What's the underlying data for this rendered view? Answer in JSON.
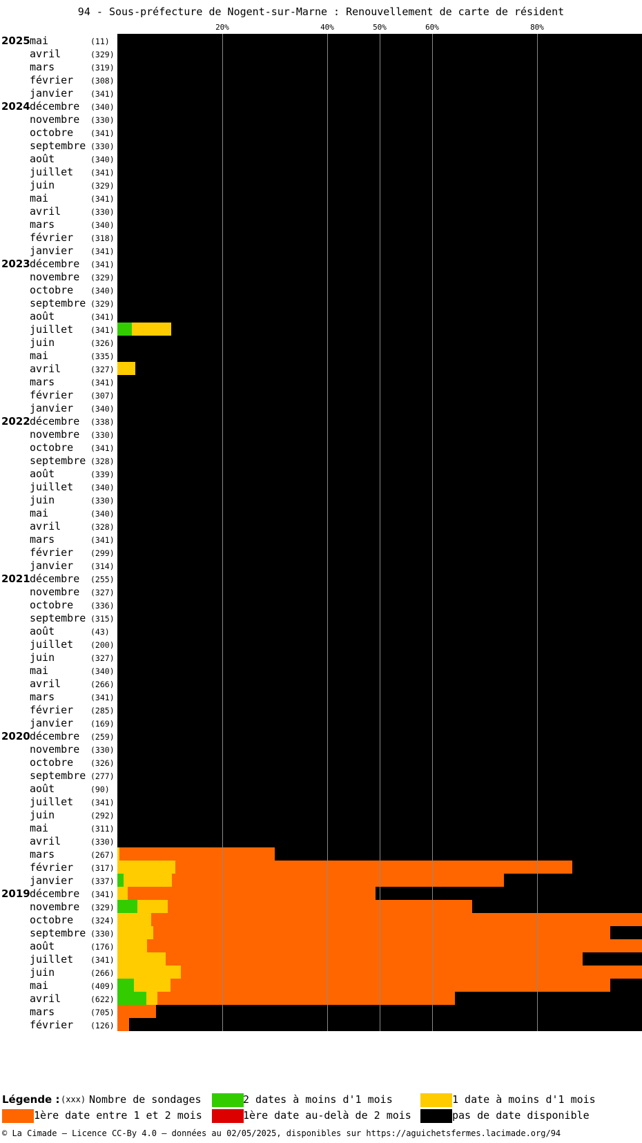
{
  "title": "94 - Sous-préfecture de Nogent-sur-Marne : Renouvellement de carte de résident",
  "colors": {
    "two_dates_lt_1m": "#33cc00",
    "one_date_lt_1m": "#ffcc00",
    "first_date_1_2m": "#ff6600",
    "first_date_gt_2m": "#dd0000",
    "none": "#000000"
  },
  "chart_data": {
    "type": "bar",
    "orientation": "horizontal-stacked",
    "x_unit": "percent",
    "xlim": [
      0,
      100
    ],
    "x_ticks": [
      20,
      40,
      50,
      60,
      80
    ],
    "x_tick_labels": [
      "20%",
      "40%",
      "50%",
      "60%",
      "80%"
    ],
    "series_order": [
      "two_dates_lt_1m",
      "one_date_lt_1m",
      "first_date_1_2m",
      "first_date_gt_2m",
      "none"
    ],
    "rows": [
      {
        "year": "2025",
        "month": "mai",
        "count": "(11)",
        "values": [
          0,
          0,
          0,
          0,
          100
        ]
      },
      {
        "year": "",
        "month": "avril",
        "count": "(329)",
        "values": [
          0,
          0,
          0,
          0,
          100
        ]
      },
      {
        "year": "",
        "month": "mars",
        "count": "(319)",
        "values": [
          0,
          0,
          0,
          0,
          100
        ]
      },
      {
        "year": "",
        "month": "février",
        "count": "(308)",
        "values": [
          0,
          0,
          0,
          0,
          100
        ]
      },
      {
        "year": "",
        "month": "janvier",
        "count": "(341)",
        "values": [
          0,
          0,
          0,
          0,
          100
        ]
      },
      {
        "year": "2024",
        "month": "décembre",
        "count": "(340)",
        "values": [
          0,
          0,
          0,
          0,
          100
        ]
      },
      {
        "year": "",
        "month": "novembre",
        "count": "(330)",
        "values": [
          0,
          0,
          0,
          0,
          100
        ]
      },
      {
        "year": "",
        "month": "octobre",
        "count": "(341)",
        "values": [
          0,
          0,
          0,
          0,
          100
        ]
      },
      {
        "year": "",
        "month": "septembre",
        "count": "(330)",
        "values": [
          0,
          0,
          0,
          0,
          100
        ]
      },
      {
        "year": "",
        "month": "août",
        "count": "(340)",
        "values": [
          0,
          0,
          0,
          0,
          100
        ]
      },
      {
        "year": "",
        "month": "juillet",
        "count": "(341)",
        "values": [
          0,
          0,
          0,
          0,
          100
        ]
      },
      {
        "year": "",
        "month": "juin",
        "count": "(329)",
        "values": [
          0,
          0,
          0,
          0,
          100
        ]
      },
      {
        "year": "",
        "month": "mai",
        "count": "(341)",
        "values": [
          0,
          0,
          0,
          0,
          100
        ]
      },
      {
        "year": "",
        "month": "avril",
        "count": "(330)",
        "values": [
          0,
          0,
          0,
          0,
          100
        ]
      },
      {
        "year": "",
        "month": "mars",
        "count": "(340)",
        "values": [
          0,
          0,
          0,
          0,
          100
        ]
      },
      {
        "year": "",
        "month": "février",
        "count": "(318)",
        "values": [
          0,
          0,
          0,
          0,
          100
        ]
      },
      {
        "year": "",
        "month": "janvier",
        "count": "(341)",
        "values": [
          0,
          0,
          0,
          0,
          100
        ]
      },
      {
        "year": "2023",
        "month": "décembre",
        "count": "(341)",
        "values": [
          0,
          0,
          0,
          0,
          100
        ]
      },
      {
        "year": "",
        "month": "novembre",
        "count": "(329)",
        "values": [
          0,
          0,
          0,
          0,
          100
        ]
      },
      {
        "year": "",
        "month": "octobre",
        "count": "(340)",
        "values": [
          0,
          0,
          0,
          0,
          100
        ]
      },
      {
        "year": "",
        "month": "septembre",
        "count": "(329)",
        "values": [
          0,
          0,
          0,
          0,
          100
        ]
      },
      {
        "year": "",
        "month": "août",
        "count": "(341)",
        "values": [
          0,
          0,
          0,
          0,
          100
        ]
      },
      {
        "year": "",
        "month": "juillet",
        "count": "(341)",
        "values": [
          2.8,
          7.4,
          0,
          0,
          89.8
        ]
      },
      {
        "year": "",
        "month": "juin",
        "count": "(326)",
        "values": [
          0,
          0,
          0,
          0,
          100
        ]
      },
      {
        "year": "",
        "month": "mai",
        "count": "(335)",
        "values": [
          0,
          0,
          0,
          0,
          100
        ]
      },
      {
        "year": "",
        "month": "avril",
        "count": "(327)",
        "values": [
          0,
          3.4,
          0,
          0,
          96.6
        ]
      },
      {
        "year": "",
        "month": "mars",
        "count": "(341)",
        "values": [
          0,
          0,
          0,
          0,
          100
        ]
      },
      {
        "year": "",
        "month": "février",
        "count": "(307)",
        "values": [
          0,
          0,
          0,
          0,
          100
        ]
      },
      {
        "year": "",
        "month": "janvier",
        "count": "(340)",
        "values": [
          0,
          0,
          0,
          0,
          100
        ]
      },
      {
        "year": "2022",
        "month": "décembre",
        "count": "(338)",
        "values": [
          0,
          0,
          0,
          0,
          100
        ]
      },
      {
        "year": "",
        "month": "novembre",
        "count": "(330)",
        "values": [
          0,
          0,
          0,
          0,
          100
        ]
      },
      {
        "year": "",
        "month": "octobre",
        "count": "(341)",
        "values": [
          0,
          0,
          0,
          0,
          100
        ]
      },
      {
        "year": "",
        "month": "septembre",
        "count": "(328)",
        "values": [
          0,
          0,
          0,
          0,
          100
        ]
      },
      {
        "year": "",
        "month": "août",
        "count": "(339)",
        "values": [
          0,
          0,
          0,
          0,
          100
        ]
      },
      {
        "year": "",
        "month": "juillet",
        "count": "(340)",
        "values": [
          0,
          0,
          0,
          0,
          100
        ]
      },
      {
        "year": "",
        "month": "juin",
        "count": "(330)",
        "values": [
          0,
          0,
          0,
          0,
          100
        ]
      },
      {
        "year": "",
        "month": "mai",
        "count": "(340)",
        "values": [
          0,
          0,
          0,
          0,
          100
        ]
      },
      {
        "year": "",
        "month": "avril",
        "count": "(328)",
        "values": [
          0,
          0,
          0,
          0,
          100
        ]
      },
      {
        "year": "",
        "month": "mars",
        "count": "(341)",
        "values": [
          0,
          0,
          0,
          0,
          100
        ]
      },
      {
        "year": "",
        "month": "février",
        "count": "(299)",
        "values": [
          0,
          0,
          0,
          0,
          100
        ]
      },
      {
        "year": "",
        "month": "janvier",
        "count": "(314)",
        "values": [
          0,
          0,
          0,
          0,
          100
        ]
      },
      {
        "year": "2021",
        "month": "décembre",
        "count": "(255)",
        "values": [
          0,
          0,
          0,
          0,
          100
        ]
      },
      {
        "year": "",
        "month": "novembre",
        "count": "(327)",
        "values": [
          0,
          0,
          0,
          0,
          100
        ]
      },
      {
        "year": "",
        "month": "octobre",
        "count": "(336)",
        "values": [
          0,
          0,
          0,
          0,
          100
        ]
      },
      {
        "year": "",
        "month": "septembre",
        "count": "(315)",
        "values": [
          0,
          0,
          0,
          0,
          100
        ]
      },
      {
        "year": "",
        "month": "août",
        "count": "(43)",
        "values": [
          0,
          0,
          0,
          0,
          100
        ]
      },
      {
        "year": "",
        "month": "juillet",
        "count": "(200)",
        "values": [
          0,
          0,
          0,
          0,
          100
        ]
      },
      {
        "year": "",
        "month": "juin",
        "count": "(327)",
        "values": [
          0,
          0,
          0,
          0,
          100
        ]
      },
      {
        "year": "",
        "month": "mai",
        "count": "(340)",
        "values": [
          0,
          0,
          0,
          0,
          100
        ]
      },
      {
        "year": "",
        "month": "avril",
        "count": "(266)",
        "values": [
          0,
          0,
          0,
          0,
          100
        ]
      },
      {
        "year": "",
        "month": "mars",
        "count": "(341)",
        "values": [
          0,
          0,
          0,
          0,
          100
        ]
      },
      {
        "year": "",
        "month": "février",
        "count": "(285)",
        "values": [
          0,
          0,
          0,
          0,
          100
        ]
      },
      {
        "year": "",
        "month": "janvier",
        "count": "(169)",
        "values": [
          0,
          0,
          0,
          0,
          100
        ]
      },
      {
        "year": "2020",
        "month": "décembre",
        "count": "(259)",
        "values": [
          0,
          0,
          0,
          0,
          100
        ]
      },
      {
        "year": "",
        "month": "novembre",
        "count": "(330)",
        "values": [
          0,
          0,
          0,
          0,
          100
        ]
      },
      {
        "year": "",
        "month": "octobre",
        "count": "(326)",
        "values": [
          0,
          0,
          0,
          0,
          100
        ]
      },
      {
        "year": "",
        "month": "septembre",
        "count": "(277)",
        "values": [
          0,
          0,
          0,
          0,
          100
        ]
      },
      {
        "year": "",
        "month": "août",
        "count": "(90)",
        "values": [
          0,
          0,
          0,
          0,
          100
        ]
      },
      {
        "year": "",
        "month": "juillet",
        "count": "(341)",
        "values": [
          0,
          0,
          0,
          0,
          100
        ]
      },
      {
        "year": "",
        "month": "juin",
        "count": "(292)",
        "values": [
          0,
          0,
          0,
          0,
          100
        ]
      },
      {
        "year": "",
        "month": "mai",
        "count": "(311)",
        "values": [
          0,
          0,
          0,
          0,
          100
        ]
      },
      {
        "year": "",
        "month": "avril",
        "count": "(330)",
        "values": [
          0,
          0,
          0,
          0,
          100
        ]
      },
      {
        "year": "",
        "month": "mars",
        "count": "(267)",
        "values": [
          0,
          0.4,
          29.6,
          0,
          70
        ]
      },
      {
        "year": "",
        "month": "février",
        "count": "(317)",
        "values": [
          0,
          11,
          75.7,
          0,
          13.3
        ]
      },
      {
        "year": "",
        "month": "janvier",
        "count": "(337)",
        "values": [
          1.2,
          9.2,
          63.3,
          0,
          26.3
        ]
      },
      {
        "year": "2019",
        "month": "décembre",
        "count": "(341)",
        "values": [
          0,
          2,
          47.2,
          0,
          50.8
        ]
      },
      {
        "year": "",
        "month": "novembre",
        "count": "(329)",
        "values": [
          3.8,
          5.8,
          58,
          0,
          32.4
        ]
      },
      {
        "year": "",
        "month": "octobre",
        "count": "(324)",
        "values": [
          0,
          6.4,
          93.6,
          0,
          0
        ]
      },
      {
        "year": "",
        "month": "septembre",
        "count": "(330)",
        "values": [
          0,
          6.8,
          87.1,
          0,
          6.1
        ]
      },
      {
        "year": "",
        "month": "août",
        "count": "(176)",
        "values": [
          0,
          5.6,
          94.4,
          0,
          0
        ]
      },
      {
        "year": "",
        "month": "juillet",
        "count": "(341)",
        "values": [
          0,
          9.2,
          79.5,
          0,
          11.3
        ]
      },
      {
        "year": "",
        "month": "juin",
        "count": "(266)",
        "values": [
          0,
          12.1,
          87.9,
          0,
          0
        ]
      },
      {
        "year": "",
        "month": "mai",
        "count": "(409)",
        "values": [
          3.2,
          6.9,
          83.9,
          0,
          6
        ]
      },
      {
        "year": "",
        "month": "avril",
        "count": "(622)",
        "values": [
          5.5,
          2.1,
          56.7,
          0,
          35.7
        ]
      },
      {
        "year": "",
        "month": "mars",
        "count": "(705)",
        "values": [
          0,
          0,
          7.4,
          0,
          92.6
        ]
      },
      {
        "year": "",
        "month": "février",
        "count": "(126)",
        "values": [
          0,
          0,
          2.3,
          0,
          97.7
        ]
      }
    ]
  },
  "legend": {
    "title": "Légende :",
    "count_hint": "(xxx)",
    "count_label": "Nombre de sondages",
    "items": [
      {
        "key": "two_dates_lt_1m",
        "label": "2 dates à moins d'1 mois"
      },
      {
        "key": "one_date_lt_1m",
        "label": "1 date à moins d'1 mois"
      },
      {
        "key": "first_date_1_2m",
        "label": "1ère date entre 1 et 2 mois"
      },
      {
        "key": "first_date_gt_2m",
        "label": "1ère date au-delà de 2 mois"
      },
      {
        "key": "none",
        "label": "pas de date disponible"
      }
    ]
  },
  "footer": "© La Cimade — Licence CC-By 4.0 — données au 02/05/2025, disponibles sur https://aguichetsfermes.lacimade.org/94"
}
